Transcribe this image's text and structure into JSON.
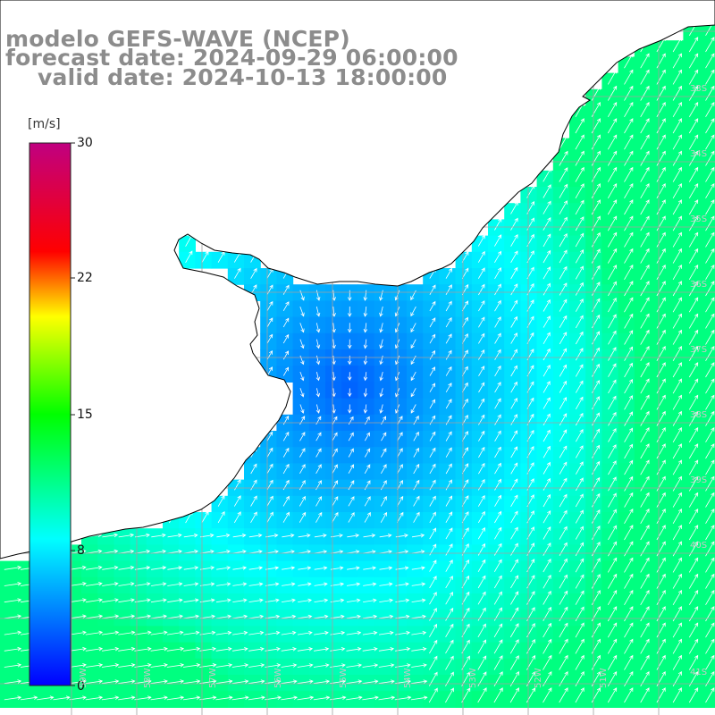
{
  "title": {
    "line1": "modelo GEFS-WAVE (NCEP)",
    "line2": "forecast date: 2024-09-29 06:00:00",
    "line3": "valid date: 2024-10-13 18:00:00"
  },
  "colorbar": {
    "units": "[m/s]",
    "ticks": [
      "0",
      "8",
      "15",
      "22",
      "30"
    ],
    "tick_values": [
      0,
      8,
      15,
      22,
      30
    ],
    "colors": [
      "#0000ff",
      "#00ffff",
      "#00ff00",
      "#ffff00",
      "#ff0000",
      "#c00080"
    ]
  },
  "latitude_labels": [
    "33S",
    "34S",
    "35S",
    "36S",
    "37S",
    "38S",
    "39S",
    "40S",
    "41S"
  ],
  "longitude_labels": [
    "59W",
    "58W",
    "57W",
    "56W",
    "55W",
    "54W",
    "53W",
    "52W",
    "51W"
  ],
  "field": {
    "variable": "wind speed",
    "min_shown": 0,
    "max_shown": 12,
    "land_color": "#ffffff",
    "grid_color": "#a0a0a0",
    "coast_color": "#000000",
    "arrow_color": "#ffffff"
  }
}
